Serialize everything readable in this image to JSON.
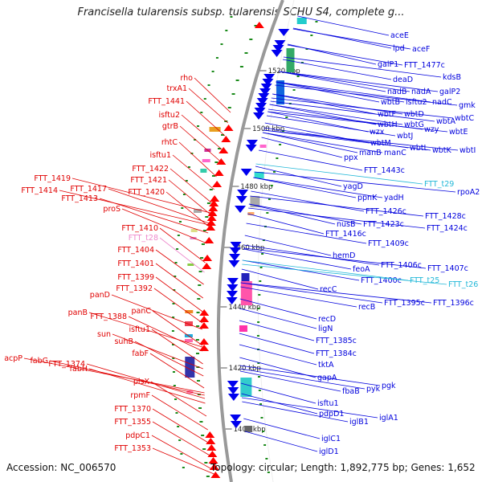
{
  "title": "Francisella tularensis subsp. tularensis SCHU S4, complete g...",
  "footer": {
    "accession": "Accession: NC_006570",
    "summary": "Topology: circular; Length: 1,892,775 bp; Genes: 1,652"
  },
  "colors": {
    "forward_label": "#e00000",
    "reverse_label": "#0000dd",
    "rna_label": "#22b8d8",
    "pseudo_label": "#ee88cc",
    "backbone": "#999999",
    "tick": "#1a8a1a"
  },
  "kbp_ticks": [
    "1520 kbp",
    "1500 kbp",
    "1480 kbp",
    "1460 kbp",
    "1440 kbp",
    "1420 kbp",
    "1400 kbp"
  ],
  "left_labels": [
    "rho",
    "trxA1",
    "FTT_1441",
    "isftu2",
    "gtrB",
    "rhtC",
    "isftu1",
    "FTT_1422",
    "FTT_1421",
    "FTT_1419",
    "FTT_1414",
    "FTT_1417",
    "FTT_1420",
    "FTT_1413",
    "proS",
    "FTT_1410",
    "FTT_t28",
    "FTT_1404",
    "FTT_1401",
    "FTT_1399",
    "FTT_1392",
    "panD",
    "panB",
    "FTT_1388",
    "panC",
    "isftu1",
    "sun",
    "suhB",
    "acpP",
    "fabG",
    "FTT_1374",
    "fabF",
    "fabH",
    "plsX",
    "rpmF",
    "FTT_1370",
    "FTT_1355",
    "pdpC1",
    "FTT_1353"
  ],
  "right_labels": [
    "aceE",
    "lpd",
    "aceF",
    "galP1",
    "FTT_1477c",
    "kdsB",
    "deaD",
    "nadB",
    "nadA",
    "galP2",
    "wbtB",
    "isftu2",
    "nadC",
    "gmk",
    "wbtF",
    "wbtD",
    "wbtA",
    "wbtH",
    "wbtG",
    "wzy",
    "wbtC",
    "wzx",
    "wbtJ",
    "wbtE",
    "wbtM",
    "wbtL",
    "manB",
    "manC",
    "wbtK",
    "wbtI",
    "ppx",
    "FTT_1443c",
    "FTT_t29",
    "yagD",
    "rpoA2",
    "ppnK",
    "yadH",
    "FTT_1426c",
    "FTT_1428c",
    "FTT_1423c",
    "nusB",
    "FTT_1424c",
    "FTT_1416c",
    "FTT_1409c",
    "hemD",
    "feoA",
    "FTT_1406c",
    "FTT_1407c",
    "FTT_1400c",
    "FTT_t25",
    "FTT_t26",
    "recC",
    "recB",
    "FTT_1395c",
    "FTT_1396c",
    "recD",
    "ligN",
    "FTT_1385c",
    "FTT_1384c",
    "tktA",
    "gapA",
    "fbaB",
    "pyk",
    "pgk",
    "isftu1",
    "pdpD1",
    "iglB1",
    "iglA1",
    "iglC1",
    "iglD1"
  ]
}
